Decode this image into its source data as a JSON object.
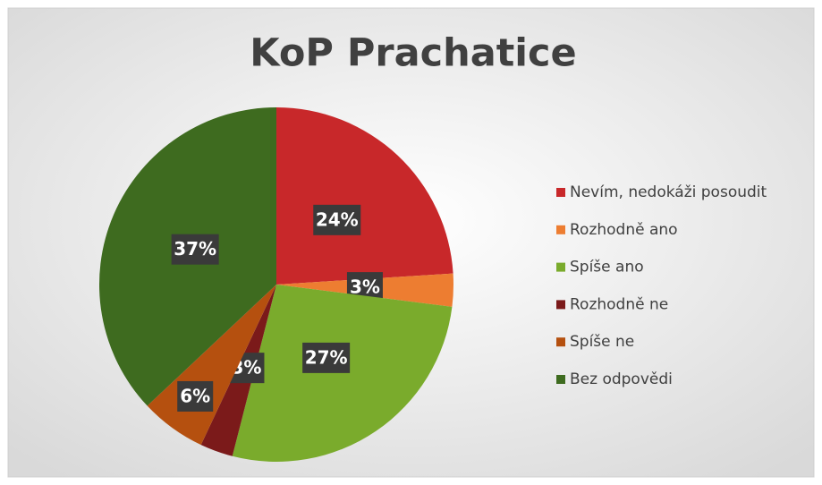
{
  "chart_data": {
    "type": "pie",
    "title": "KoP Prachatice",
    "categories": [
      "Nevím, nedokáži posoudit",
      "Rozhodně ano",
      "Spíše ano",
      "Rozhodně ne",
      "Spíše ne",
      "Bez odpovědi"
    ],
    "values": [
      24,
      3,
      27,
      3,
      6,
      37
    ],
    "value_labels": [
      "24%",
      "3%",
      "27%",
      "3%",
      "6%",
      "37%"
    ],
    "colors": [
      "#c8282a",
      "#ed7d31",
      "#7aab2c",
      "#7b1a1a",
      "#b5500f",
      "#3e6b1f"
    ],
    "legend": "right"
  }
}
